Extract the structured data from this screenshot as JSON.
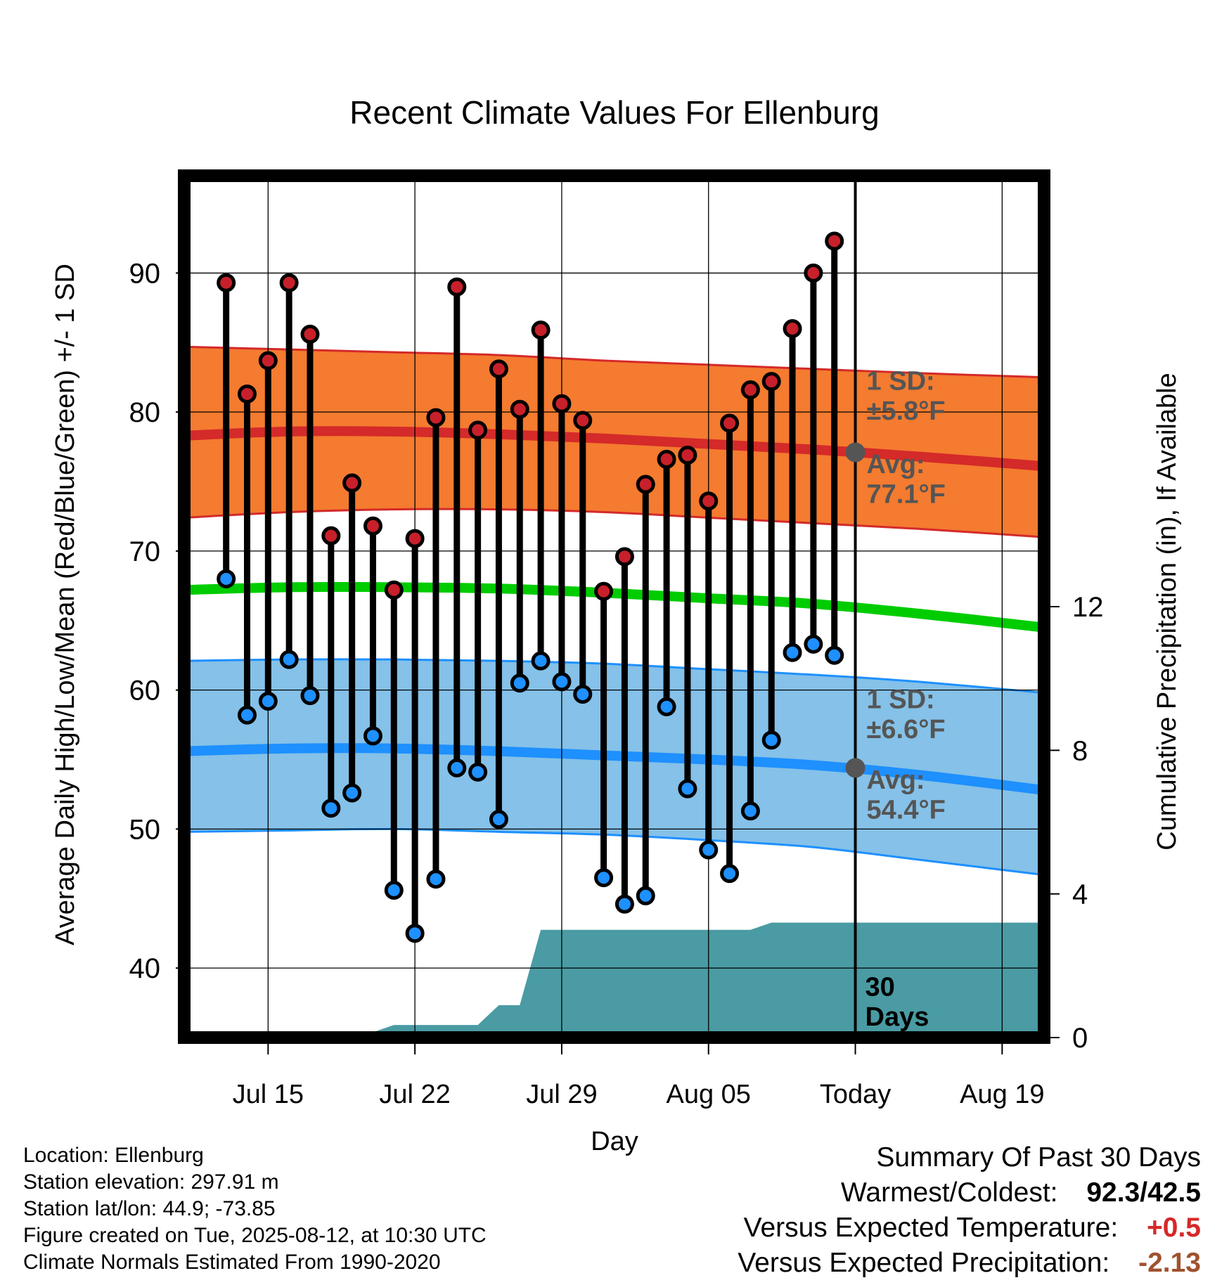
{
  "chart_data": {
    "type": "line",
    "title": "Recent Climate Values For Ellenburg",
    "xlabel": "Day",
    "ylabel": "Average Daily High/Low/Mean (Red/Blue/Green) +/- 1 SD",
    "y2label": "Cumulative Precipitation (in), If Available",
    "xlim": [
      "2025-07-11",
      "2025-08-21"
    ],
    "ylim": [
      35,
      97
    ],
    "y2lim": [
      0,
      24
    ],
    "yticks": [
      40,
      50,
      60,
      70,
      80,
      90
    ],
    "y2ticks": [
      0,
      4,
      8,
      12
    ],
    "xticks": [
      {
        "date": "2025-07-15",
        "label": "Jul 15"
      },
      {
        "date": "2025-07-22",
        "label": "Jul 22"
      },
      {
        "date": "2025-07-29",
        "label": "Jul 29"
      },
      {
        "date": "2025-08-05",
        "label": "Aug 05"
      },
      {
        "date": "2025-08-12",
        "label": "Today"
      },
      {
        "date": "2025-08-19",
        "label": "Aug 19"
      }
    ],
    "grid": true,
    "today": "2025-08-12",
    "days_label": "30\nDays",
    "observed": {
      "dates": [
        "2025-07-13",
        "2025-07-14",
        "2025-07-15",
        "2025-07-16",
        "2025-07-17",
        "2025-07-18",
        "2025-07-19",
        "2025-07-20",
        "2025-07-21",
        "2025-07-22",
        "2025-07-23",
        "2025-07-24",
        "2025-07-25",
        "2025-07-26",
        "2025-07-27",
        "2025-07-28",
        "2025-07-29",
        "2025-07-30",
        "2025-07-31",
        "2025-08-01",
        "2025-08-02",
        "2025-08-03",
        "2025-08-04",
        "2025-08-05",
        "2025-08-06",
        "2025-08-07",
        "2025-08-08",
        "2025-08-09",
        "2025-08-10",
        "2025-08-11"
      ],
      "highs": [
        89.3,
        81.3,
        83.7,
        89.3,
        85.6,
        71.1,
        74.9,
        71.8,
        67.2,
        70.9,
        79.6,
        89.0,
        78.7,
        83.1,
        80.2,
        85.9,
        80.6,
        79.4,
        67.1,
        69.6,
        74.8,
        76.6,
        76.9,
        73.6,
        79.2,
        81.6,
        82.2,
        86.0,
        90.0,
        92.3
      ],
      "lows": [
        68.0,
        58.2,
        59.2,
        62.2,
        59.6,
        51.5,
        52.6,
        56.7,
        45.6,
        42.5,
        46.4,
        54.4,
        54.1,
        50.7,
        60.5,
        62.1,
        60.6,
        59.7,
        46.5,
        44.6,
        45.2,
        58.8,
        52.9,
        48.5,
        46.8,
        51.3,
        56.4,
        62.7,
        63.3,
        62.5
      ]
    },
    "normals": {
      "dates": [
        "2025-07-11",
        "2025-07-16",
        "2025-07-21",
        "2025-07-26",
        "2025-07-31",
        "2025-08-05",
        "2025-08-10",
        "2025-08-15",
        "2025-08-21"
      ],
      "high_avg": [
        78.3,
        78.6,
        78.6,
        78.4,
        78.1,
        77.7,
        77.3,
        76.8,
        76.1
      ],
      "high_upper": [
        84.7,
        84.5,
        84.3,
        84.1,
        83.7,
        83.4,
        83.1,
        82.8,
        82.5
      ],
      "high_lower": [
        72.4,
        72.8,
        73.0,
        73.0,
        72.8,
        72.4,
        72.0,
        71.6,
        71.0
      ],
      "mean_avg": [
        67.2,
        67.4,
        67.4,
        67.3,
        67.0,
        66.6,
        66.2,
        65.5,
        64.5
      ],
      "low_avg": [
        55.6,
        55.8,
        55.8,
        55.6,
        55.3,
        55.0,
        54.6,
        53.9,
        52.8
      ],
      "low_upper": [
        62.1,
        62.2,
        62.2,
        62.1,
        61.9,
        61.5,
        61.1,
        60.6,
        59.8
      ],
      "low_lower": [
        49.8,
        49.9,
        50.0,
        49.8,
        49.6,
        49.2,
        48.7,
        47.8,
        46.7
      ]
    },
    "precip_cumulative": {
      "dates": [
        "2025-07-13",
        "2025-07-14",
        "2025-07-15",
        "2025-07-16",
        "2025-07-17",
        "2025-07-18",
        "2025-07-19",
        "2025-07-20",
        "2025-07-21",
        "2025-07-22",
        "2025-07-23",
        "2025-07-24",
        "2025-07-25",
        "2025-07-26",
        "2025-07-27",
        "2025-07-28",
        "2025-07-29",
        "2025-07-30",
        "2025-07-31",
        "2025-08-01",
        "2025-08-02",
        "2025-08-03",
        "2025-08-04",
        "2025-08-05",
        "2025-08-06",
        "2025-08-07",
        "2025-08-08",
        "2025-08-09",
        "2025-08-10",
        "2025-08-11",
        "2025-08-21"
      ],
      "values": [
        0,
        0,
        0,
        0,
        0,
        0.1,
        0.15,
        0.15,
        0.35,
        0.35,
        0.35,
        0.35,
        0.35,
        0.9,
        0.9,
        3.0,
        3.0,
        3.0,
        3.0,
        3.0,
        3.0,
        3.0,
        3.0,
        3.0,
        3.0,
        3.0,
        3.2,
        3.2,
        3.2,
        3.2,
        3.2
      ]
    },
    "annotations": {
      "high_sd": "1 SD:\n±5.8°F",
      "high_avg_today": "Avg:\n77.1°F",
      "high_avg_value": 77.1,
      "low_sd": "1 SD:\n±6.6°F",
      "low_avg_today": "Avg:\n54.4°F",
      "low_avg_value": 54.4
    },
    "colors": {
      "high_band": "#f47b2f",
      "high_line": "#d42a2a",
      "mean_line": "#00cc00",
      "low_band": "#85c1e8",
      "low_line": "#1e90ff",
      "precip": "#4a9ba3",
      "high_dot": "#c8202a",
      "low_dot": "#1e90ff",
      "annotation": "#555555",
      "warm": "#d62828",
      "precip_deficit": "#a0522d"
    }
  },
  "info": {
    "location": "Location: Ellenburg",
    "elevation": "Station elevation: 297.91 m",
    "latlon": "Station lat/lon: 44.9; -73.85",
    "created": "Figure created on Tue, 2025-08-12, at 10:30 UTC",
    "normals": "Climate Normals Estimated From 1990-2020"
  },
  "summary": {
    "title": "Summary Of Past 30 Days",
    "warm_cold_label": "Warmest/Coldest:",
    "warm_cold_value": "92.3/42.5",
    "temp_label": "Versus Expected Temperature:",
    "temp_value": "+0.5",
    "precip_label": "Versus Expected Precipitation:",
    "precip_value": "-2.13"
  }
}
